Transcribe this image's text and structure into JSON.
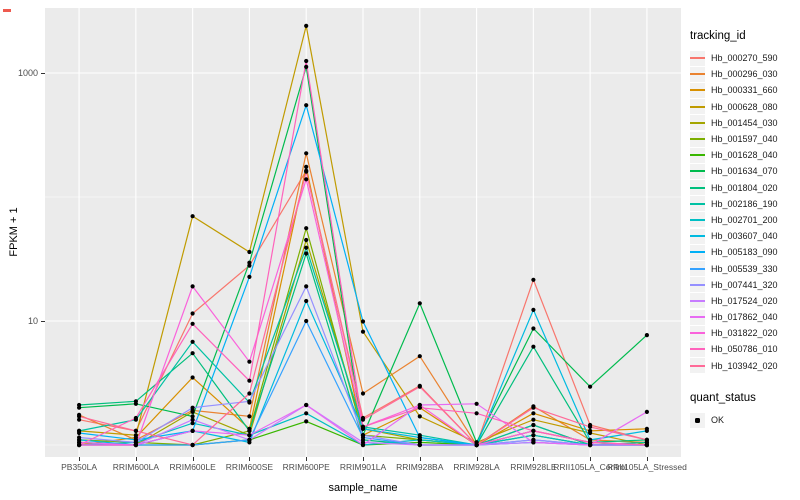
{
  "figure": {
    "stray_mark_color": "#ee5a4f"
  },
  "legend": {
    "tracking_title": "tracking_id",
    "quant_title": "quant_status",
    "quant_items": [
      {
        "label": "OK"
      }
    ]
  },
  "chart_data": {
    "type": "line",
    "title": "",
    "xlabel": "sample_name",
    "ylabel": "FPKM + 1",
    "y_scale": "log10",
    "y_ticks": [
      10,
      1000
    ],
    "y_tick_labels": [
      "10",
      "1000"
    ],
    "y_minor_gridlines": [
      1,
      100
    ],
    "ylim": [
      0.8,
      3350
    ],
    "grid": true,
    "legend_position": "right",
    "panel_background": "#EBEBEB",
    "gridline_color": "#FFFFFF",
    "point_color": "#000000",
    "categories": [
      "PB350LA",
      "RRIM600LA",
      "RRIM600LE",
      "RRIM600SE",
      "RRIM600PE",
      "RRIM901LA",
      "RRIM928BA",
      "RRIM928LA",
      "RRIM928LE",
      "RRII105LA_Control",
      "RRII105LA_Stressed"
    ],
    "series": [
      {
        "name": "Hb_000270_590",
        "color": "#F8766D",
        "values": [
          1.6,
          1.3,
          11.5,
          28,
          163,
          1.65,
          3.0,
          1.0,
          21.5,
          1.45,
          1.1
        ]
      },
      {
        "name": "Hb_000296_030",
        "color": "#EA8331",
        "values": [
          1.75,
          1.1,
          1.9,
          1.7,
          225,
          2.6,
          5.2,
          1.0,
          2.05,
          1.1,
          1.05
        ]
      },
      {
        "name": "Hb_000331_660",
        "color": "#D89000",
        "values": [
          1.0,
          1.15,
          3.5,
          1.35,
          175,
          1.2,
          2.0,
          1.0,
          1.8,
          1.3,
          1.35
        ]
      },
      {
        "name": "Hb_000628_080",
        "color": "#C09B00",
        "values": [
          1.3,
          1.2,
          70,
          36,
          2400,
          8.2,
          1.7,
          1.05,
          1.6,
          1.25,
          1.0
        ]
      },
      {
        "name": "Hb_001454_030",
        "color": "#A3A500",
        "values": [
          1.0,
          1.0,
          1.85,
          1.2,
          45,
          1.35,
          1.1,
          1.0,
          1.45,
          1.0,
          1.05
        ]
      },
      {
        "name": "Hb_001597_040",
        "color": "#7CAE00",
        "values": [
          1.1,
          1.05,
          1.0,
          1.3,
          56,
          1.2,
          1.1,
          1.0,
          1.3,
          1.05,
          1.0
        ]
      },
      {
        "name": "Hb_001628_040",
        "color": "#39B600",
        "values": [
          1.05,
          1.0,
          1.0,
          1.1,
          1.55,
          1.0,
          1.05,
          1.0,
          1.2,
          1.0,
          1.0
        ]
      },
      {
        "name": "Hb_001634_070",
        "color": "#00BB4E",
        "values": [
          2.0,
          2.15,
          1.7,
          29.5,
          1120,
          1.2,
          13.9,
          1.05,
          8.7,
          2.95,
          7.7
        ]
      },
      {
        "name": "Hb_001804_020",
        "color": "#00BF7D",
        "values": [
          2.1,
          2.25,
          5.5,
          1.3,
          35,
          1.1,
          1.0,
          1.0,
          6.2,
          1.05,
          1.1
        ]
      },
      {
        "name": "Hb_002186_190",
        "color": "#00C1A3",
        "values": [
          1.3,
          1.6,
          6.8,
          2.2,
          39,
          1.4,
          1.2,
          1.0,
          1.45,
          1.0,
          1.05
        ]
      },
      {
        "name": "Hb_002701_200",
        "color": "#00BFC4",
        "values": [
          1.0,
          1.05,
          1.5,
          1.2,
          1.8,
          1.0,
          1.1,
          1.0,
          1.2,
          1.0,
          1.0
        ]
      },
      {
        "name": "Hb_003607_040",
        "color": "#00BAE0",
        "values": [
          1.1,
          1.0,
          1.3,
          1.05,
          14.5,
          1.35,
          1.15,
          1.0,
          12.3,
          1.1,
          1.3
        ]
      },
      {
        "name": "Hb_005183_090",
        "color": "#00B0F6",
        "values": [
          1.25,
          1.1,
          1.3,
          22.7,
          550,
          9.9,
          1.15,
          1.0,
          1.05,
          1.0,
          1.0
        ]
      },
      {
        "name": "Hb_005539_330",
        "color": "#35A2FF",
        "values": [
          1.0,
          1.0,
          1.0,
          1.1,
          10,
          1.15,
          1.0,
          1.0,
          1.1,
          1.0,
          1.0
        ]
      },
      {
        "name": "Hb_007441_320",
        "color": "#9590FF",
        "values": [
          1.15,
          1.05,
          2.0,
          2.25,
          19,
          1.2,
          1.0,
          1.0,
          1.1,
          1.0,
          1.0
        ]
      },
      {
        "name": "Hb_017524_020",
        "color": "#C77CFF",
        "values": [
          1.0,
          1.0,
          1.6,
          1.1,
          2.1,
          1.05,
          1.0,
          1.0,
          1.05,
          1.0,
          1.0
        ]
      },
      {
        "name": "Hb_017862_040",
        "color": "#E76BF3",
        "values": [
          1.05,
          1.0,
          1.3,
          1.2,
          2.1,
          1.0,
          2.1,
          2.15,
          1.05,
          1.0,
          1.85
        ]
      },
      {
        "name": "Hb_031822_020",
        "color": "#FA62DB",
        "values": [
          1.0,
          1.0,
          19,
          4.7,
          139,
          1.4,
          2.1,
          1.0,
          1.3,
          1.05,
          1.0
        ]
      },
      {
        "name": "Hb_050786_010",
        "color": "#FF62BC",
        "values": [
          1.0,
          1.65,
          9.5,
          3.3,
          1250,
          1.4,
          2.0,
          1.8,
          1.3,
          1.05,
          1.0
        ]
      },
      {
        "name": "Hb_103942_020",
        "color": "#FF6A98",
        "values": [
          1.7,
          1.3,
          1.0,
          2.6,
          160,
          1.6,
          2.95,
          1.0,
          2.0,
          1.4,
          1.1
        ]
      }
    ]
  }
}
